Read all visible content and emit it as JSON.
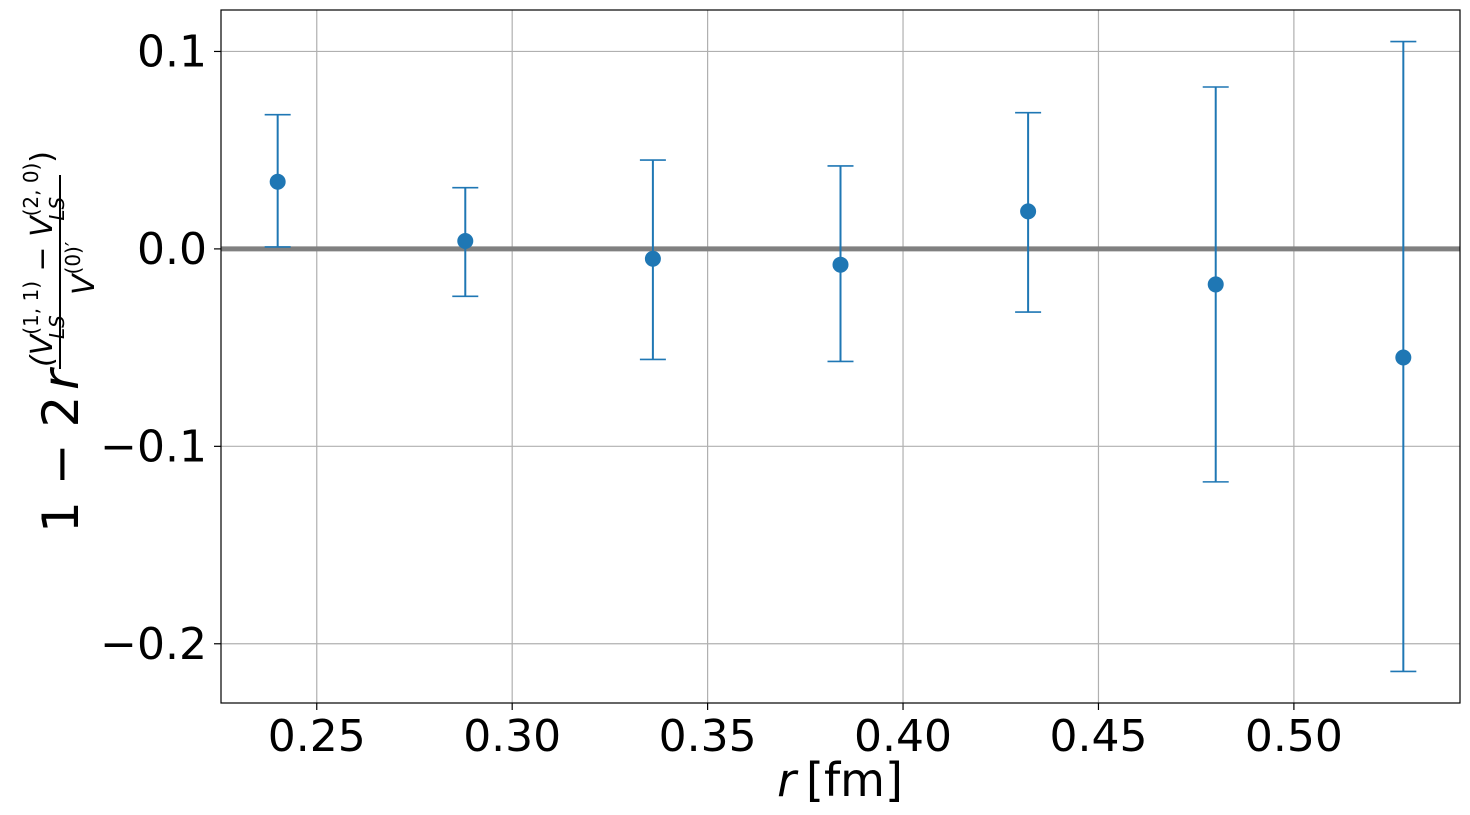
{
  "chart_data": {
    "type": "scatter",
    "x": [
      0.24,
      0.288,
      0.336,
      0.384,
      0.432,
      0.48,
      0.528
    ],
    "y": [
      0.034,
      0.004,
      -0.005,
      -0.008,
      0.019,
      -0.018,
      -0.055
    ],
    "yerr_upper": [
      0.068,
      0.031,
      0.045,
      0.042,
      0.069,
      0.082,
      0.105
    ],
    "yerr_lower": [
      0.001,
      -0.024,
      -0.056,
      -0.057,
      -0.032,
      -0.118,
      -0.214
    ],
    "xlim": [
      0.2255,
      0.5425
    ],
    "ylim": [
      -0.23,
      0.121
    ],
    "xticks": [
      0.25,
      0.3,
      0.35,
      0.4,
      0.45,
      0.5
    ],
    "xtick_labels": [
      "0.25",
      "0.30",
      "0.35",
      "0.40",
      "0.45",
      "0.50"
    ],
    "yticks": [
      0.1,
      0.0,
      -0.1,
      -0.2
    ],
    "ytick_labels": [
      "0.1",
      "0.0",
      "−0.1",
      "−0.2"
    ],
    "reference_line_y": 0.0,
    "grid": true,
    "xlabel": {
      "var": "r",
      "unit": "[fm]"
    },
    "ylabel": {
      "prefix": "1 − 2",
      "var": "r",
      "numerator": "(V",
      "num_sup1": "(1, 1)",
      "num_sub1": "LS",
      "minus": " − V",
      "num_sup2": "(2, 0)",
      "num_sub2": "LS",
      "close": ")",
      "denominator": "V",
      "den_sup": "(0)′"
    },
    "colors": {
      "series": "#1f77b4",
      "reference": "#808080",
      "grid": "#b0b0b0"
    }
  }
}
